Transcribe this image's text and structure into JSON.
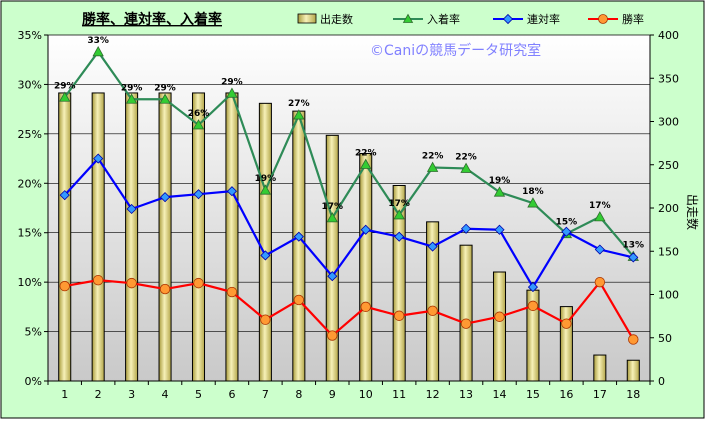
{
  "chart_data": {
    "type": "bar+line",
    "title": "勝率、連対率、入着率",
    "watermark": "©Caniの競馬データ研究室",
    "categories": [
      "1",
      "2",
      "3",
      "4",
      "5",
      "6",
      "7",
      "8",
      "9",
      "10",
      "11",
      "12",
      "13",
      "14",
      "15",
      "16",
      "17",
      "18"
    ],
    "y2label": "出走数",
    "ylim": [
      0,
      35
    ],
    "y2lim": [
      0,
      400
    ],
    "yticks": [
      "0%",
      "5%",
      "10%",
      "15%",
      "20%",
      "25%",
      "30%",
      "35%"
    ],
    "y2ticks": [
      "0",
      "50",
      "100",
      "150",
      "200",
      "250",
      "300",
      "350",
      "400"
    ],
    "bar_series": {
      "name": "出走数",
      "color": "#eee8a0",
      "values": [
        333,
        333,
        333,
        333,
        333,
        333,
        321,
        312,
        284,
        263,
        226,
        184,
        157,
        126,
        105,
        86,
        30,
        24
      ]
    },
    "series": [
      {
        "name": "入着率",
        "color": "#2e8b57",
        "marker_color": "#33cc33",
        "values": [
          28.7,
          33.3,
          28.5,
          28.5,
          25.9,
          29.1,
          19.3,
          26.9,
          16.5,
          21.9,
          16.8,
          21.6,
          21.5,
          19.1,
          18.0,
          14.9,
          16.6,
          12.6
        ]
      },
      {
        "name": "連対率",
        "color": "#0000ff",
        "marker_color": "#3399ff",
        "values": [
          18.8,
          22.5,
          17.4,
          18.6,
          18.9,
          19.2,
          12.7,
          14.6,
          10.6,
          15.3,
          14.6,
          13.6,
          15.4,
          15.3,
          9.5,
          15.1,
          13.3,
          12.5
        ]
      },
      {
        "name": "勝率",
        "color": "#ff0000",
        "marker_color": "#ff9933",
        "values": [
          9.6,
          10.2,
          9.9,
          9.3,
          9.9,
          9.0,
          6.2,
          8.2,
          4.6,
          7.5,
          6.6,
          7.1,
          5.8,
          6.5,
          7.6,
          5.8,
          10.0,
          4.2
        ]
      }
    ],
    "data_labels": {
      "series": "入着率",
      "labels": [
        "29%",
        "33%",
        "29%",
        "29%",
        "26%",
        "29%",
        "19%",
        "27%",
        "17%",
        "22%",
        "17%",
        "22%",
        "22%",
        "19%",
        "18%",
        "15%",
        "17%",
        "13%"
      ]
    },
    "legend_position": "top"
  }
}
